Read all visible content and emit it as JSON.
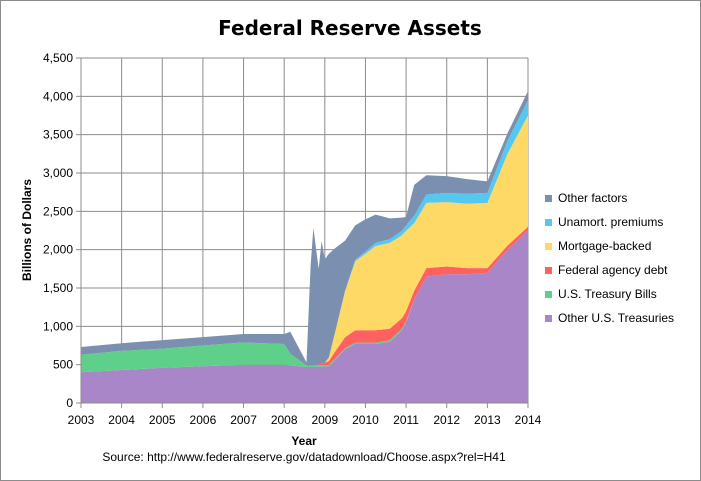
{
  "chart_data": {
    "type": "area",
    "stacked": true,
    "title": "Federal Reserve Assets",
    "xlabel": "Year",
    "ylabel": "Billions of Dollars",
    "source": "Source: http://www.federalreserve.gov/datadownload/Choose.aspx?rel=H41",
    "xlim": [
      2003,
      2014
    ],
    "ylim": [
      0,
      4500
    ],
    "x_ticks": [
      "2003",
      "2004",
      "2005",
      "2006",
      "2007",
      "2008",
      "2009",
      "2010",
      "2011",
      "2012",
      "2013",
      "2014"
    ],
    "y_ticks": [
      "0",
      "500",
      "1,000",
      "1,500",
      "2,000",
      "2,500",
      "3,000",
      "3,500",
      "4,000",
      "4,500"
    ],
    "grid": true,
    "legend_position": "right",
    "x": [
      2003,
      2004,
      2005,
      2006,
      2007,
      2008,
      2008.15,
      2008.55,
      2008.65,
      2008.72,
      2008.8,
      2008.85,
      2008.92,
      2009.0,
      2009.1,
      2009.25,
      2009.5,
      2009.75,
      2010.0,
      2010.25,
      2010.6,
      2010.9,
      2011.0,
      2011.2,
      2011.5,
      2012.0,
      2012.5,
      2013.0,
      2013.5,
      2014.0
    ],
    "series": [
      {
        "name": "Other U.S. Treasuries",
        "color": "#a886c8",
        "values": [
          400,
          430,
          460,
          480,
          500,
          500,
          490,
          470,
          470,
          470,
          475,
          475,
          475,
          475,
          480,
          560,
          700,
          770,
          770,
          770,
          800,
          950,
          1050,
          1350,
          1650,
          1680,
          1680,
          1700,
          2000,
          2250
        ]
      },
      {
        "name": "U.S. Treasury Bills",
        "color": "#5fd08a",
        "values": [
          230,
          250,
          250,
          270,
          290,
          270,
          150,
          20,
          18,
          18,
          18,
          18,
          18,
          18,
          18,
          18,
          18,
          18,
          18,
          18,
          18,
          18,
          18,
          0,
          0,
          0,
          0,
          0,
          0,
          0
        ]
      },
      {
        "name": "Federal agency debt",
        "color": "#ff6060",
        "values": [
          0,
          0,
          0,
          0,
          0,
          0,
          0,
          0,
          0,
          0,
          0,
          10,
          20,
          30,
          50,
          90,
          140,
          160,
          160,
          160,
          150,
          140,
          130,
          115,
          110,
          100,
          80,
          60,
          55,
          50
        ]
      },
      {
        "name": "Mortgage-backed",
        "color": "#ffd966",
        "values": [
          0,
          0,
          0,
          0,
          0,
          0,
          0,
          0,
          0,
          0,
          0,
          0,
          0,
          0,
          50,
          250,
          600,
          900,
          1000,
          1100,
          1120,
          1080,
          1050,
          880,
          850,
          840,
          840,
          850,
          1200,
          1450
        ]
      },
      {
        "name": "Unamort. premiums",
        "color": "#56c8f0",
        "values": [
          0,
          0,
          0,
          0,
          0,
          0,
          0,
          0,
          0,
          0,
          0,
          0,
          0,
          0,
          0,
          0,
          10,
          20,
          30,
          40,
          50,
          60,
          70,
          100,
          110,
          120,
          130,
          130,
          170,
          200
        ]
      },
      {
        "name": "Other factors",
        "color": "#7b90b0",
        "values": [
          100,
          100,
          110,
          110,
          110,
          130,
          290,
          40,
          1300,
          1800,
          1450,
          1250,
          1600,
          1350,
          1350,
          1100,
          650,
          450,
          420,
          370,
          270,
          170,
          110,
          400,
          250,
          220,
          190,
          150,
          100,
          120
        ]
      }
    ]
  }
}
